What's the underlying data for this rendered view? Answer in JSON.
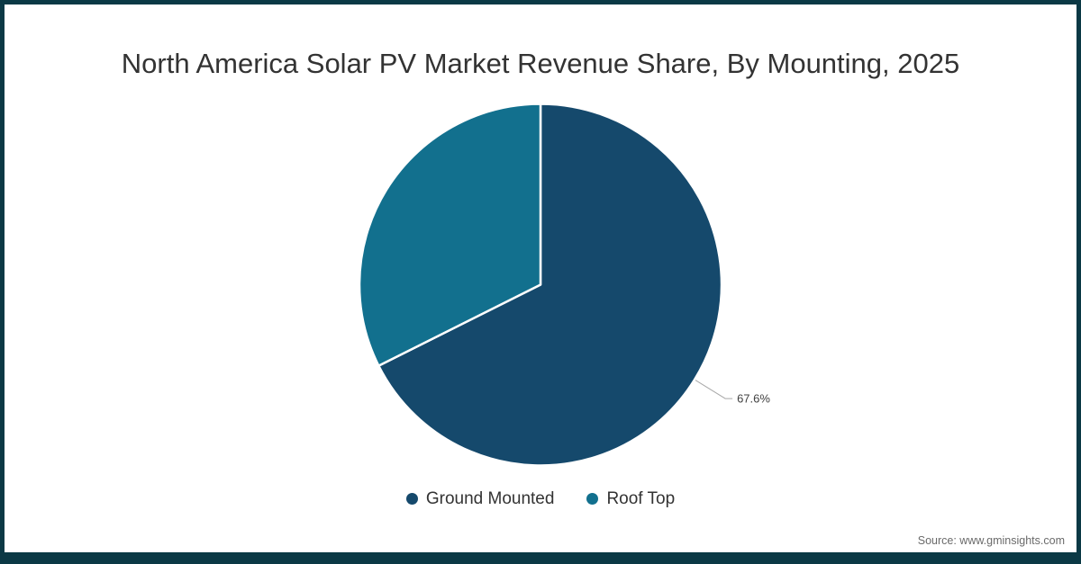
{
  "page": {
    "source_note": "Source: www.gminsights.com"
  },
  "chart_data": {
    "type": "pie",
    "title": "North America Solar PV Market Revenue Share, By Mounting, 2025",
    "unit": "%",
    "start_angle": "top",
    "direction": "clockwise",
    "legend_position": "bottom",
    "slices": [
      {
        "label": "Ground Mounted",
        "value": 67.6,
        "data_label": "67.6%",
        "color": "#15496c"
      },
      {
        "label": "Roof Top",
        "value": 32.4,
        "data_label": "",
        "color": "#12708e"
      }
    ],
    "colors": {
      "frame": "#0b3945",
      "title_text": "#333333",
      "legend_text": "#333333",
      "data_label_text": "#404040",
      "leader_line": "#a9a9a9",
      "slice_separator": "#ffffff",
      "background": "#ffffff"
    }
  }
}
